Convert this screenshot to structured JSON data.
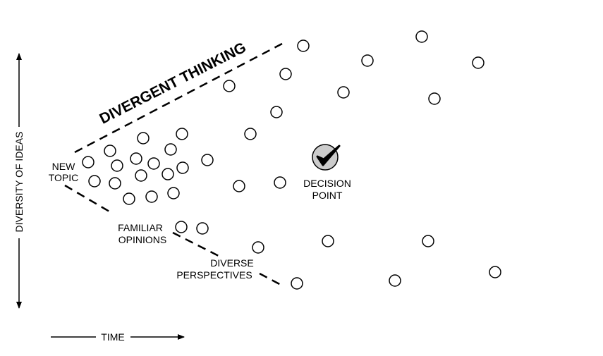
{
  "title": "DIVERGENT THINKING",
  "labels": {
    "new_topic": [
      "NEW",
      "TOPIC"
    ],
    "decision_point": [
      "DECISION",
      "POINT"
    ],
    "familiar_opinions": [
      "FAMILIAR",
      "OPINIONS"
    ],
    "diverse_perspectives": [
      "DIVERSE",
      "PERSPECTIVES"
    ]
  },
  "axes": {
    "y": "DIVERSITY OF IDEAS",
    "x": "TIME"
  }
}
